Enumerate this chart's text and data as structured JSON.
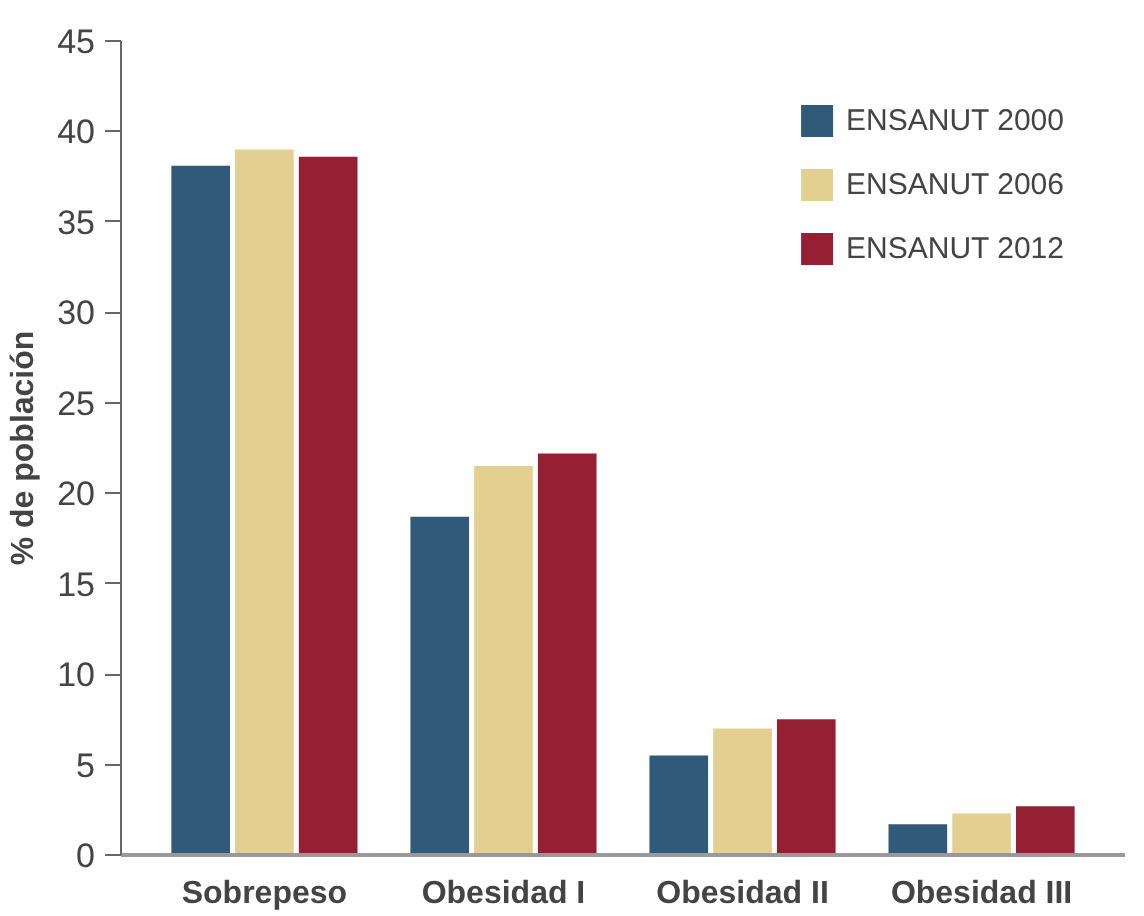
{
  "chart_data": {
    "type": "bar",
    "ylabel": "% de población",
    "categories": [
      "Sobrepeso",
      "Obesidad I",
      "Obesidad II",
      "Obesidad III"
    ],
    "series": [
      {
        "name": "ENSANUT 2000",
        "color": "#315a7a",
        "values": [
          38.1,
          18.7,
          5.5,
          1.7
        ]
      },
      {
        "name": "ENSANUT 2006",
        "color": "#e3cf90",
        "values": [
          39.0,
          21.5,
          7.0,
          2.3
        ]
      },
      {
        "name": "ENSANUT 2012",
        "color": "#952034",
        "values": [
          38.6,
          22.2,
          7.5,
          2.7
        ]
      }
    ],
    "ylim": [
      0,
      45
    ],
    "yticks": [
      0,
      5,
      10,
      15,
      20,
      25,
      30,
      35,
      40,
      45
    ],
    "grid": false,
    "legend": "top right"
  }
}
